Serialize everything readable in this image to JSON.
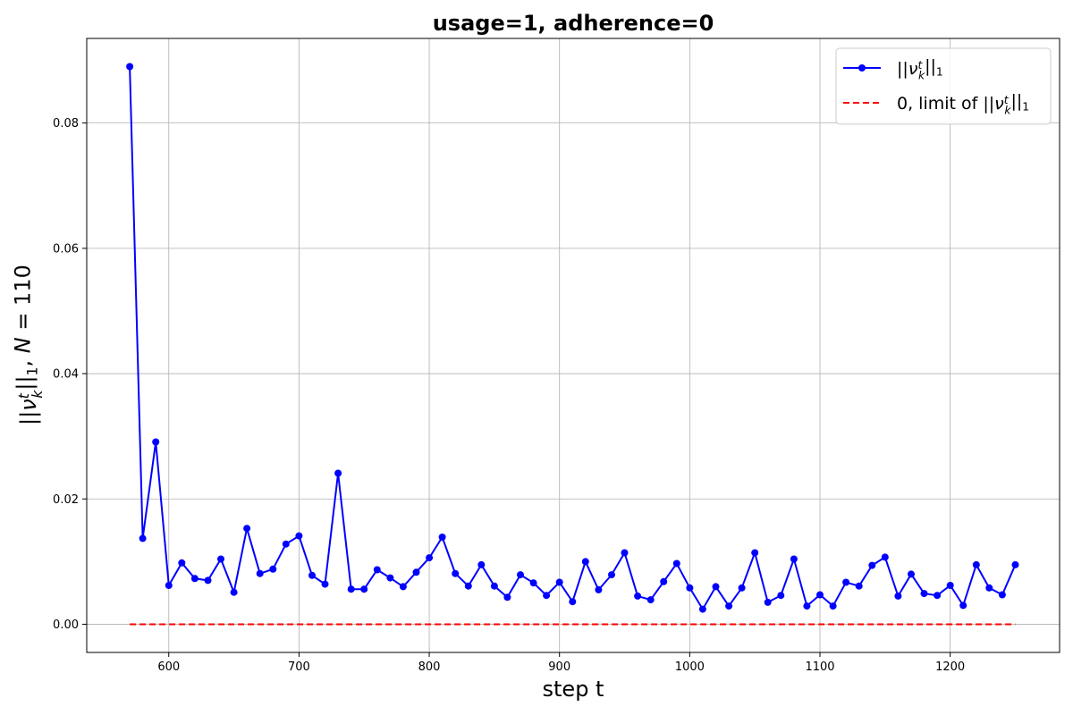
{
  "chart_data": {
    "type": "line",
    "title": "usage=1, adherence=0",
    "xlabel": "step t",
    "ylabel": "||ν_k^t||_1, N = 110",
    "xlim": [
      537,
      1284
    ],
    "ylim": [
      -0.0045,
      0.0935
    ],
    "x_ticks": [
      600,
      700,
      800,
      900,
      1000,
      1100,
      1200
    ],
    "x_tick_labels": [
      "600",
      "700",
      "800",
      "900",
      "1000",
      "1100",
      "1200"
    ],
    "y_ticks": [
      0.0,
      0.02,
      0.04,
      0.06,
      0.08
    ],
    "y_tick_labels": [
      "0.00",
      "0.02",
      "0.04",
      "0.06",
      "0.08"
    ],
    "grid": true,
    "legend_position": "top-right",
    "series": [
      {
        "name": "||ν_k^t||_1",
        "color": "#0000ff",
        "style": "solid",
        "marker": "circle",
        "x": [
          570,
          580,
          590,
          600,
          610,
          620,
          630,
          640,
          650,
          660,
          670,
          680,
          690,
          700,
          710,
          720,
          730,
          740,
          750,
          760,
          770,
          780,
          790,
          800,
          810,
          820,
          830,
          840,
          850,
          860,
          870,
          880,
          890,
          900,
          910,
          920,
          930,
          940,
          950,
          960,
          970,
          980,
          990,
          1000,
          1010,
          1020,
          1030,
          1040,
          1050,
          1060,
          1070,
          1080,
          1090,
          1100,
          1110,
          1120,
          1130,
          1140,
          1150,
          1160,
          1170,
          1180,
          1190,
          1200,
          1210,
          1220,
          1230,
          1240,
          1250
        ],
        "y": [
          0.089,
          0.0137,
          0.0291,
          0.0062,
          0.0098,
          0.0073,
          0.007,
          0.0104,
          0.0051,
          0.0153,
          0.0081,
          0.0088,
          0.0128,
          0.0141,
          0.0078,
          0.0064,
          0.0241,
          0.0056,
          0.0056,
          0.0087,
          0.0074,
          0.006,
          0.0083,
          0.0106,
          0.0139,
          0.0081,
          0.0061,
          0.0095,
          0.0061,
          0.0043,
          0.0079,
          0.0066,
          0.0046,
          0.0067,
          0.0036,
          0.01,
          0.0055,
          0.0079,
          0.0114,
          0.0045,
          0.0039,
          0.0068,
          0.0097,
          0.0058,
          0.0024,
          0.006,
          0.0029,
          0.0058,
          0.0114,
          0.0035,
          0.0046,
          0.0104,
          0.0029,
          0.0047,
          0.0029,
          0.0067,
          0.0061,
          0.0094,
          0.0107,
          0.0045,
          0.008,
          0.0049,
          0.0046,
          0.0062,
          0.003,
          0.0095,
          0.0058,
          0.0047,
          0.0095
        ]
      },
      {
        "name": "0, limit of ||ν_k^t||_1",
        "color": "#ff0000",
        "style": "dashed",
        "marker": "none",
        "x": [
          570,
          1250
        ],
        "y": [
          0,
          0
        ]
      }
    ]
  }
}
